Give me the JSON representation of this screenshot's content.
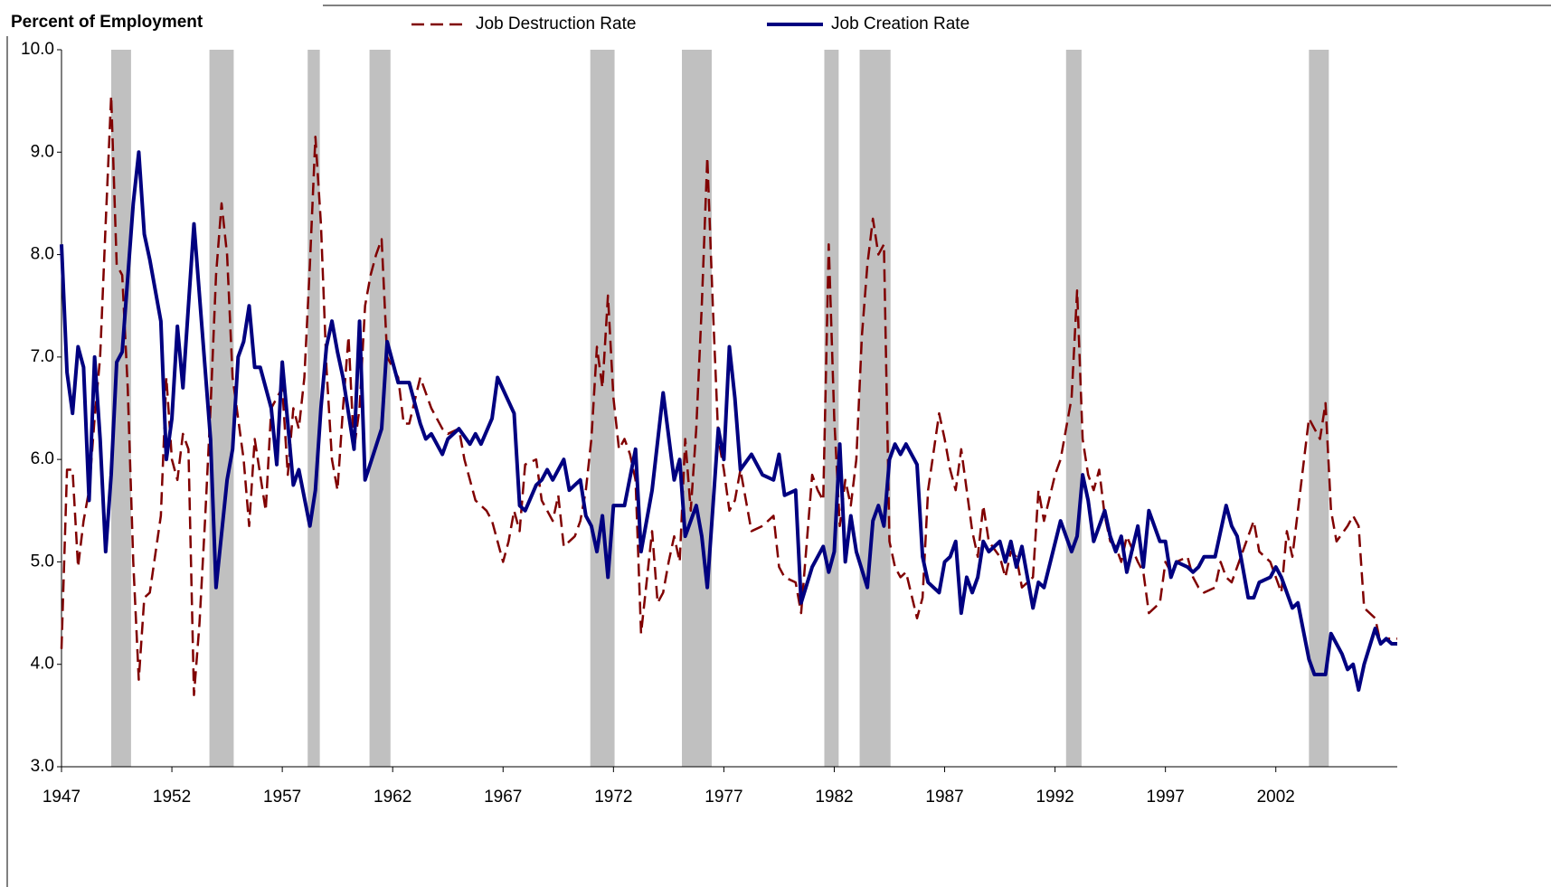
{
  "chart_data": {
    "type": "line",
    "title": "Percent of Employment",
    "xlim": [
      1947,
      2007.5
    ],
    "xticks": [
      1947,
      1952,
      1957,
      1962,
      1967,
      1972,
      1977,
      1982,
      1987,
      1992,
      1997,
      2002
    ],
    "ylim": [
      3,
      10
    ],
    "yticks": [
      {
        "value": 3,
        "label": "3.0"
      },
      {
        "value": 4,
        "label": "4.0"
      },
      {
        "value": 5,
        "label": "5.0"
      },
      {
        "value": 6,
        "label": "6.0"
      },
      {
        "value": 7,
        "label": "7.0"
      },
      {
        "value": 8,
        "label": "8.0"
      },
      {
        "value": 9,
        "label": "9.0"
      },
      {
        "value": 10,
        "label": "10.0"
      }
    ],
    "grid": false,
    "legend": "top",
    "recessions": [
      [
        1949.25,
        1950.15
      ],
      [
        1953.7,
        1954.8
      ],
      [
        1958.15,
        1958.7
      ],
      [
        1960.95,
        1961.9
      ],
      [
        1970.95,
        1972.05
      ],
      [
        1975.1,
        1976.45
      ],
      [
        1981.55,
        1982.2
      ],
      [
        1983.15,
        1984.55
      ],
      [
        1992.5,
        1993.2
      ],
      [
        2003.5,
        2004.4
      ]
    ],
    "recession_color": "#c0c0c0",
    "series": [
      {
        "name": "Job Destruction Rate",
        "color": "#800000",
        "dashed": true,
        "x": [
          1947,
          1947.25,
          1947.5,
          1947.75,
          1948,
          1948.25,
          1948.5,
          1948.75,
          1949,
          1949.25,
          1949.5,
          1949.75,
          1950,
          1950.25,
          1950.5,
          1950.75,
          1951,
          1951.5,
          1951.75,
          1952,
          1952.25,
          1952.5,
          1952.75,
          1953,
          1953.25,
          1953.5,
          1953.75,
          1954,
          1954.25,
          1954.5,
          1954.75,
          1955.25,
          1955.5,
          1955.75,
          1956.25,
          1956.5,
          1957,
          1957.25,
          1957.5,
          1957.75,
          1958,
          1958.25,
          1958.5,
          1958.75,
          1959,
          1959.25,
          1959.5,
          1959.75,
          1960,
          1960.25,
          1960.5,
          1960.75,
          1961,
          1961.25,
          1961.5,
          1961.75,
          1962.25,
          1962.5,
          1962.75,
          1963.25,
          1963.75,
          1964.25,
          1964.5,
          1965,
          1965.25,
          1965.75,
          1966.25,
          1966.5,
          1967,
          1967.25,
          1967.5,
          1967.75,
          1968,
          1968.5,
          1968.75,
          1969.25,
          1969.5,
          1969.75,
          1970.25,
          1970.5,
          1970.75,
          1971,
          1971.25,
          1971.5,
          1971.75,
          1972,
          1972.25,
          1972.5,
          1972.75,
          1973,
          1973.25,
          1973.75,
          1974,
          1974.25,
          1974.5,
          1974.75,
          1975,
          1975.25,
          1975.5,
          1975.75,
          1976,
          1976.25,
          1976.5,
          1976.75,
          1977,
          1977.25,
          1977.5,
          1977.75,
          1978.25,
          1978.75,
          1979.25,
          1979.5,
          1979.75,
          1980.25,
          1980.5,
          1981,
          1981.25,
          1981.5,
          1981.75,
          1982,
          1982.25,
          1982.5,
          1982.75,
          1983,
          1983.25,
          1983.5,
          1983.75,
          1984,
          1984.25,
          1984.5,
          1984.75,
          1985,
          1985.25,
          1985.75,
          1986,
          1986.25,
          1986.75,
          1987,
          1987.25,
          1987.5,
          1987.75,
          1988,
          1988.25,
          1988.5,
          1988.75,
          1989,
          1989.5,
          1989.75,
          1990,
          1990.25,
          1990.5,
          1991,
          1991.25,
          1991.5,
          1992,
          1992.25,
          1992.75,
          1993,
          1993.25,
          1993.5,
          1993.75,
          1994,
          1994.25,
          1994.5,
          1994.75,
          1995,
          1995.25,
          1995.75,
          1996,
          1996.25,
          1996.75,
          1997,
          1997.25,
          1997.5,
          1998,
          1998.25,
          1998.5,
          1998.75,
          1999.25,
          1999.5,
          1999.75,
          2000,
          2000.25,
          2000.75,
          2001,
          2001.25,
          2001.75,
          2002,
          2002.25,
          2002.5,
          2002.75,
          2003,
          2003.5,
          2003.75,
          2004,
          2004.25,
          2004.5,
          2004.75,
          2005.25,
          2005.5,
          2005.75,
          2006,
          2006.5,
          2006.75,
          2007,
          2007.5
        ],
        "values": [
          4.15,
          5.9,
          5.9,
          4.95,
          5.4,
          5.7,
          6.4,
          7.0,
          8.3,
          9.55,
          7.9,
          7.8,
          6.7,
          5.0,
          3.85,
          4.65,
          4.7,
          5.45,
          6.8,
          6.0,
          5.8,
          6.25,
          6.1,
          3.7,
          4.4,
          5.4,
          6.5,
          7.8,
          8.5,
          8.0,
          6.8,
          6.0,
          5.35,
          6.2,
          5.5,
          6.5,
          6.7,
          5.85,
          6.5,
          6.3,
          6.8,
          7.9,
          9.15,
          8.3,
          6.9,
          6.0,
          5.7,
          6.5,
          7.2,
          6.1,
          6.5,
          7.5,
          7.8,
          8.0,
          8.15,
          7.0,
          6.8,
          6.35,
          6.35,
          6.8,
          6.5,
          6.3,
          6.25,
          6.3,
          6.0,
          5.6,
          5.5,
          5.4,
          5.0,
          5.2,
          5.5,
          5.3,
          5.95,
          6.0,
          5.6,
          5.4,
          5.65,
          5.15,
          5.25,
          5.4,
          5.7,
          6.2,
          7.1,
          6.7,
          7.6,
          6.6,
          6.1,
          6.2,
          6.05,
          5.8,
          4.3,
          5.3,
          4.6,
          4.7,
          5.0,
          5.25,
          5.0,
          6.2,
          5.5,
          6.3,
          7.5,
          8.95,
          7.5,
          6.2,
          5.9,
          5.5,
          5.6,
          5.9,
          5.3,
          5.35,
          5.45,
          4.95,
          4.85,
          4.8,
          4.5,
          5.85,
          5.7,
          5.6,
          8.1,
          6.4,
          5.35,
          5.8,
          5.55,
          6.0,
          7.2,
          7.9,
          8.35,
          8.0,
          8.1,
          5.2,
          4.95,
          4.85,
          4.9,
          4.45,
          4.65,
          5.7,
          6.45,
          6.2,
          5.9,
          5.7,
          6.1,
          5.7,
          5.3,
          5.05,
          5.55,
          5.2,
          5.05,
          4.85,
          5.1,
          5.05,
          4.75,
          4.85,
          5.7,
          5.4,
          5.85,
          6.0,
          6.6,
          7.65,
          6.2,
          5.85,
          5.7,
          5.9,
          5.45,
          5.2,
          5.15,
          5.0,
          5.25,
          5.0,
          4.9,
          4.5,
          4.6,
          5.0,
          4.9,
          5.0,
          5.05,
          4.85,
          4.75,
          4.7,
          4.75,
          5.0,
          4.85,
          4.8,
          4.95,
          5.25,
          5.4,
          5.1,
          5.0,
          4.85,
          4.7,
          5.3,
          5.05,
          5.5,
          6.4,
          6.3,
          6.2,
          6.55,
          5.5,
          5.2,
          5.35,
          5.45,
          5.35,
          4.55,
          4.45,
          4.2,
          4.25,
          4.25
        ]
      },
      {
        "name": "Job Creation Rate",
        "color": "#000080",
        "dashed": false,
        "x": [
          1947,
          1947.25,
          1947.5,
          1947.75,
          1948,
          1948.25,
          1948.5,
          1948.75,
          1949,
          1949.25,
          1949.5,
          1949.75,
          1950.25,
          1950.5,
          1950.75,
          1951,
          1951.5,
          1951.75,
          1952,
          1952.25,
          1952.5,
          1953,
          1953.5,
          1953.75,
          1954,
          1954.5,
          1954.75,
          1955,
          1955.25,
          1955.5,
          1955.75,
          1956,
          1956.5,
          1956.75,
          1957,
          1957.5,
          1957.75,
          1958.25,
          1958.5,
          1958.75,
          1959,
          1959.25,
          1959.5,
          1959.75,
          1960.25,
          1960.5,
          1960.75,
          1961.5,
          1961.75,
          1962.25,
          1962.75,
          1963.25,
          1963.5,
          1963.75,
          1964.25,
          1964.5,
          1965,
          1965.5,
          1965.75,
          1966,
          1966.5,
          1966.75,
          1967.5,
          1967.75,
          1968,
          1968.5,
          1968.75,
          1969,
          1969.25,
          1969.75,
          1970,
          1970.5,
          1970.75,
          1971,
          1971.25,
          1971.5,
          1971.75,
          1972,
          1972.5,
          1973,
          1973.25,
          1973.75,
          1974.25,
          1974.75,
          1975,
          1975.25,
          1975.75,
          1976,
          1976.25,
          1976.75,
          1977,
          1977.25,
          1977.5,
          1977.75,
          1978.25,
          1978.75,
          1979.25,
          1979.5,
          1979.75,
          1980.25,
          1980.5,
          1981,
          1981.5,
          1981.75,
          1982,
          1982.25,
          1982.5,
          1982.75,
          1983,
          1983.5,
          1983.75,
          1984,
          1984.25,
          1984.5,
          1984.75,
          1985,
          1985.25,
          1985.75,
          1986,
          1986.25,
          1986.75,
          1987,
          1987.25,
          1987.5,
          1987.75,
          1988,
          1988.25,
          1988.5,
          1988.75,
          1989,
          1989.5,
          1989.75,
          1990,
          1990.25,
          1990.5,
          1991,
          1991.25,
          1991.5,
          1992.25,
          1992.75,
          1993,
          1993.25,
          1993.5,
          1993.75,
          1994.25,
          1994.5,
          1994.75,
          1995,
          1995.25,
          1995.75,
          1996,
          1996.25,
          1996.75,
          1997,
          1997.25,
          1997.5,
          1998,
          1998.25,
          1998.5,
          1998.75,
          1999.25,
          1999.75,
          2000,
          2000.25,
          2000.75,
          2001,
          2001.25,
          2001.75,
          2002,
          2002.25,
          2002.75,
          2003,
          2003.5,
          2003.75,
          2004.25,
          2004.5,
          2005,
          2005.25,
          2005.5,
          2005.75,
          2006,
          2006.5,
          2006.75,
          2007,
          2007.25,
          2007.5
        ],
        "values": [
          8.1,
          6.85,
          6.45,
          7.1,
          6.9,
          5.6,
          7.0,
          6.2,
          5.1,
          5.85,
          6.95,
          7.05,
          8.5,
          9.0,
          8.2,
          7.95,
          7.35,
          6.0,
          6.4,
          7.3,
          6.7,
          8.3,
          6.9,
          6.2,
          4.75,
          5.8,
          6.1,
          7.0,
          7.15,
          7.5,
          6.9,
          6.9,
          6.5,
          5.95,
          6.95,
          5.75,
          5.9,
          5.35,
          5.7,
          6.5,
          7.1,
          7.35,
          7.05,
          6.8,
          6.1,
          7.35,
          5.8,
          6.3,
          7.15,
          6.75,
          6.75,
          6.35,
          6.2,
          6.25,
          6.05,
          6.2,
          6.3,
          6.15,
          6.25,
          6.15,
          6.4,
          6.8,
          6.45,
          5.55,
          5.5,
          5.75,
          5.8,
          5.9,
          5.8,
          6.0,
          5.7,
          5.8,
          5.45,
          5.35,
          5.1,
          5.45,
          4.85,
          5.55,
          5.55,
          6.1,
          5.1,
          5.7,
          6.65,
          5.8,
          6.0,
          5.25,
          5.55,
          5.25,
          4.75,
          6.3,
          6.0,
          7.1,
          6.6,
          5.9,
          6.05,
          5.85,
          5.8,
          6.05,
          5.65,
          5.7,
          4.6,
          4.95,
          5.15,
          4.9,
          5.1,
          6.15,
          5.0,
          5.45,
          5.1,
          4.75,
          5.4,
          5.55,
          5.35,
          6.0,
          6.15,
          6.05,
          6.15,
          5.95,
          5.05,
          4.8,
          4.7,
          5.0,
          5.05,
          5.2,
          4.5,
          4.85,
          4.7,
          4.85,
          5.2,
          5.1,
          5.2,
          5.0,
          5.2,
          4.95,
          5.15,
          4.55,
          4.8,
          4.75,
          5.4,
          5.1,
          5.25,
          5.85,
          5.6,
          5.2,
          5.5,
          5.25,
          5.1,
          5.25,
          4.9,
          5.35,
          4.95,
          5.5,
          5.2,
          5.2,
          4.85,
          5.0,
          4.95,
          4.9,
          4.95,
          5.05,
          5.05,
          5.55,
          5.35,
          5.25,
          4.65,
          4.65,
          4.8,
          4.85,
          4.95,
          4.85,
          4.55,
          4.6,
          4.05,
          3.9,
          3.9,
          4.3,
          4.1,
          3.95,
          4.0,
          3.75,
          4.0,
          4.35,
          4.2,
          4.25,
          4.2,
          4.2
        ]
      }
    ]
  }
}
